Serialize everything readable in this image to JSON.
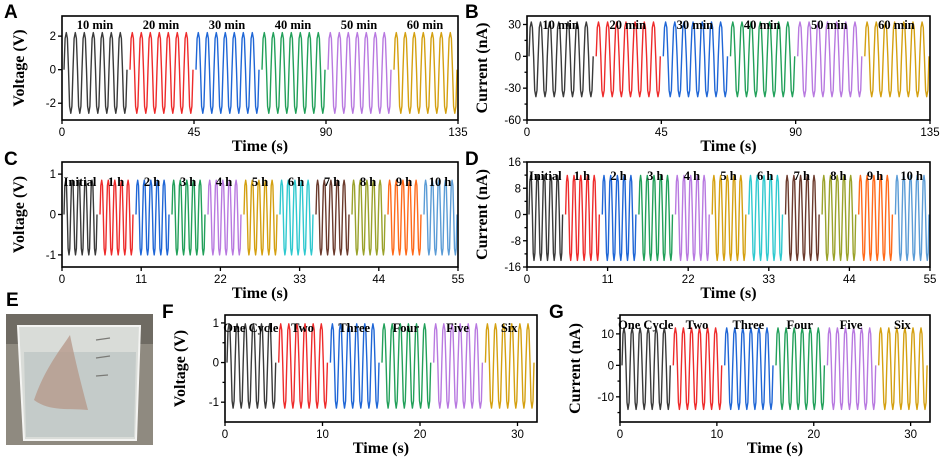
{
  "colors": {
    "palette": [
      "#3a3a3a",
      "#ee2b2b",
      "#1f66d6",
      "#22a05a",
      "#b879e0",
      "#d4a010",
      "#2fc9cf",
      "#6b3a2c",
      "#9aa22a",
      "#ff6a1a",
      "#5b9cd6"
    ]
  },
  "photo_E": {
    "panel": "E",
    "description_icon": "beaker-photo"
  },
  "chart_data": [
    {
      "panel": "A",
      "type": "line",
      "xlabel": "Time (s)",
      "ylabel": "Voltage (V)",
      "xlim": [
        0,
        135
      ],
      "ylim": [
        -3,
        3.2
      ],
      "xticks": [
        0,
        45,
        90,
        135
      ],
      "yticks": [
        -2,
        0,
        2
      ],
      "amplitude": 2.6,
      "series": [
        {
          "name": "10 min",
          "start": 0,
          "end": 22.5
        },
        {
          "name": "20 min",
          "start": 22.5,
          "end": 45
        },
        {
          "name": "30 min",
          "start": 45,
          "end": 67.5
        },
        {
          "name": "40 min",
          "start": 67.5,
          "end": 90
        },
        {
          "name": "50 min",
          "start": 90,
          "end": 112.5
        },
        {
          "name": "60 min",
          "start": 112.5,
          "end": 135
        }
      ]
    },
    {
      "panel": "B",
      "type": "line",
      "xlabel": "Time (s)",
      "ylabel": "Current (nA)",
      "xlim": [
        0,
        135
      ],
      "ylim": [
        -60,
        38
      ],
      "xticks": [
        0,
        45,
        90,
        135
      ],
      "yticks": [
        -60,
        -30,
        0,
        30
      ],
      "yticks_minor": [
        -45,
        -15,
        15
      ],
      "amplitude": 38,
      "series": [
        {
          "name": "10 min",
          "start": 0,
          "end": 22.5
        },
        {
          "name": "20 min",
          "start": 22.5,
          "end": 45
        },
        {
          "name": "30 min",
          "start": 45,
          "end": 67.5
        },
        {
          "name": "40 min",
          "start": 67.5,
          "end": 90
        },
        {
          "name": "50 min",
          "start": 90,
          "end": 112.5
        },
        {
          "name": "60 min",
          "start": 112.5,
          "end": 135
        }
      ]
    },
    {
      "panel": "C",
      "type": "line",
      "xlabel": "Time (s)",
      "ylabel": "Voltage (V)",
      "xlim": [
        0,
        55
      ],
      "ylim": [
        -1.3,
        1.3
      ],
      "xticks": [
        0,
        11,
        22,
        33,
        44,
        55
      ],
      "yticks": [
        -1,
        0,
        1
      ],
      "amplitude": 1.0,
      "series": [
        {
          "name": "Initial",
          "start": 0,
          "end": 5
        },
        {
          "name": "1 h",
          "start": 5,
          "end": 10
        },
        {
          "name": "2 h",
          "start": 10,
          "end": 15
        },
        {
          "name": "3 h",
          "start": 15,
          "end": 20
        },
        {
          "name": "4 h",
          "start": 20,
          "end": 25
        },
        {
          "name": "5 h",
          "start": 25,
          "end": 30
        },
        {
          "name": "6 h",
          "start": 30,
          "end": 35
        },
        {
          "name": "7 h",
          "start": 35,
          "end": 40
        },
        {
          "name": "8 h",
          "start": 40,
          "end": 45
        },
        {
          "name": "9 h",
          "start": 45,
          "end": 50
        },
        {
          "name": "10 h",
          "start": 50,
          "end": 55
        }
      ]
    },
    {
      "panel": "D",
      "type": "line",
      "xlabel": "Time (s)",
      "ylabel": "Current (nA)",
      "xlim": [
        0,
        55
      ],
      "ylim": [
        -16,
        16
      ],
      "xticks": [
        0,
        11,
        22,
        33,
        44,
        55
      ],
      "yticks": [
        -16,
        -8,
        0,
        8,
        16
      ],
      "yticks_minor": [
        -12,
        -4,
        4,
        12
      ],
      "amplitude": 14,
      "series": [
        {
          "name": "Initial",
          "start": 0,
          "end": 5
        },
        {
          "name": "1 h",
          "start": 5,
          "end": 10
        },
        {
          "name": "2 h",
          "start": 10,
          "end": 15
        },
        {
          "name": "3 h",
          "start": 15,
          "end": 20
        },
        {
          "name": "4 h",
          "start": 20,
          "end": 25
        },
        {
          "name": "5 h",
          "start": 25,
          "end": 30
        },
        {
          "name": "6 h",
          "start": 30,
          "end": 35
        },
        {
          "name": "7 h",
          "start": 35,
          "end": 40
        },
        {
          "name": "8 h",
          "start": 40,
          "end": 45
        },
        {
          "name": "9 h",
          "start": 45,
          "end": 50
        },
        {
          "name": "10 h",
          "start": 50,
          "end": 55
        }
      ]
    },
    {
      "panel": "F",
      "type": "line",
      "xlabel": "Time (s)",
      "ylabel": "Voltage (V)",
      "xlim": [
        0,
        32
      ],
      "ylim": [
        -1.5,
        1.2
      ],
      "xticks": [
        0,
        10,
        20,
        30
      ],
      "yticks": [
        -1,
        0,
        1
      ],
      "yticks_minor": [
        -0.5,
        0.5
      ],
      "amplitude": 1.15,
      "series": [
        {
          "name": "One Cycle",
          "start": 0,
          "end": 5.3
        },
        {
          "name": "Two",
          "start": 5.3,
          "end": 10.6
        },
        {
          "name": "Three",
          "start": 10.6,
          "end": 15.9
        },
        {
          "name": "Four",
          "start": 15.9,
          "end": 21.2
        },
        {
          "name": "Five",
          "start": 21.2,
          "end": 26.5
        },
        {
          "name": "Six",
          "start": 26.5,
          "end": 31.8
        }
      ]
    },
    {
      "panel": "G",
      "type": "line",
      "xlabel": "Time (s)",
      "ylabel": "Current (nA)",
      "xlim": [
        0,
        32
      ],
      "ylim": [
        -18,
        16
      ],
      "xticks": [
        0,
        10,
        20,
        30
      ],
      "yticks": [
        -10,
        0,
        10
      ],
      "yticks_minor": [
        -15,
        -5,
        5,
        15
      ],
      "amplitude": 14,
      "series": [
        {
          "name": "One Cycle",
          "start": 0,
          "end": 5.3
        },
        {
          "name": "Two",
          "start": 5.3,
          "end": 10.6
        },
        {
          "name": "Three",
          "start": 10.6,
          "end": 15.9
        },
        {
          "name": "Four",
          "start": 15.9,
          "end": 21.2
        },
        {
          "name": "Five",
          "start": 21.2,
          "end": 26.5
        },
        {
          "name": "Six",
          "start": 26.5,
          "end": 31.8
        }
      ]
    }
  ]
}
